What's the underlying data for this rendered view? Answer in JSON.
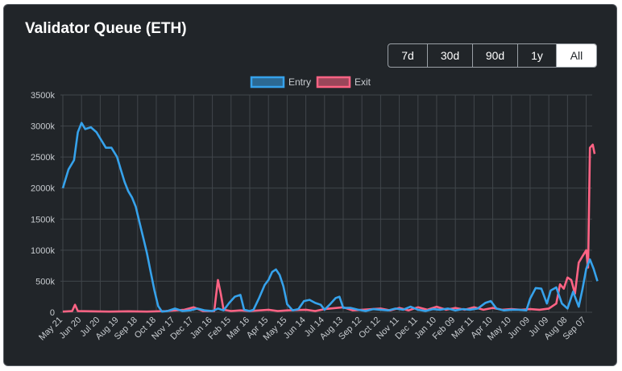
{
  "title": "Validator Queue (ETH)",
  "range_buttons": [
    {
      "label": "7d",
      "active": false
    },
    {
      "label": "30d",
      "active": false
    },
    {
      "label": "90d",
      "active": false
    },
    {
      "label": "1y",
      "active": false
    },
    {
      "label": "All",
      "active": true
    }
  ],
  "colors": {
    "card_bg": "#212529",
    "grid": "#41464b",
    "text": "#c8ccd0",
    "entry": "#36a2eb",
    "exit": "#ff6384"
  },
  "chart_data": {
    "type": "line",
    "title": "",
    "xlabel": "",
    "ylabel": "",
    "ylim": [
      0,
      3500000
    ],
    "yticks": [
      "0",
      "500k",
      "1000k",
      "1500k",
      "2000k",
      "2500k",
      "3000k",
      "3500k"
    ],
    "legend_position": "top-center",
    "grid": true,
    "x_ticks": [
      "May 21",
      "Jun 20",
      "Jul 20",
      "Aug 19",
      "Sep 18",
      "Oct 18",
      "Nov 17",
      "Dec 17",
      "Jan 16",
      "Feb 15",
      "Mar 16",
      "Apr 15",
      "May 15",
      "Jun 14",
      "Jul 14",
      "Aug 13",
      "Sep 12",
      "Oct 12",
      "Nov 11",
      "Dec 11",
      "Jan 10",
      "Feb 09",
      "Mar 11",
      "Apr 10",
      "May 10",
      "Jun 09",
      "Jul 09",
      "Aug 08",
      "Sep 07"
    ],
    "series": [
      {
        "name": "Entry",
        "color": "#36a2eb",
        "points": [
          [
            0,
            2000000
          ],
          [
            0.3,
            2300000
          ],
          [
            0.6,
            2450000
          ],
          [
            0.8,
            2900000
          ],
          [
            1.0,
            3050000
          ],
          [
            1.2,
            2950000
          ],
          [
            1.5,
            2980000
          ],
          [
            1.8,
            2900000
          ],
          [
            2.0,
            2800000
          ],
          [
            2.3,
            2650000
          ],
          [
            2.6,
            2650000
          ],
          [
            2.9,
            2500000
          ],
          [
            3.1,
            2300000
          ],
          [
            3.3,
            2100000
          ],
          [
            3.5,
            1950000
          ],
          [
            3.7,
            1850000
          ],
          [
            3.9,
            1700000
          ],
          [
            4.1,
            1450000
          ],
          [
            4.3,
            1200000
          ],
          [
            4.5,
            950000
          ],
          [
            4.7,
            650000
          ],
          [
            4.9,
            350000
          ],
          [
            5.1,
            100000
          ],
          [
            5.3,
            10000
          ],
          [
            5.6,
            20000
          ],
          [
            6.0,
            60000
          ],
          [
            6.4,
            20000
          ],
          [
            6.8,
            30000
          ],
          [
            7.2,
            60000
          ],
          [
            7.6,
            30000
          ],
          [
            8.0,
            20000
          ],
          [
            8.3,
            60000
          ],
          [
            8.6,
            30000
          ],
          [
            8.9,
            150000
          ],
          [
            9.2,
            250000
          ],
          [
            9.5,
            280000
          ],
          [
            9.7,
            40000
          ],
          [
            10.0,
            20000
          ],
          [
            10.2,
            40000
          ],
          [
            10.5,
            230000
          ],
          [
            10.8,
            440000
          ],
          [
            11.0,
            520000
          ],
          [
            11.2,
            650000
          ],
          [
            11.4,
            690000
          ],
          [
            11.6,
            600000
          ],
          [
            11.8,
            420000
          ],
          [
            12.0,
            130000
          ],
          [
            12.3,
            30000
          ],
          [
            12.6,
            50000
          ],
          [
            12.9,
            180000
          ],
          [
            13.2,
            200000
          ],
          [
            13.5,
            150000
          ],
          [
            13.8,
            120000
          ],
          [
            14.0,
            40000
          ],
          [
            14.3,
            130000
          ],
          [
            14.6,
            230000
          ],
          [
            14.8,
            250000
          ],
          [
            15.0,
            70000
          ],
          [
            15.4,
            70000
          ],
          [
            15.8,
            40000
          ],
          [
            16.2,
            20000
          ],
          [
            16.6,
            50000
          ],
          [
            17.0,
            40000
          ],
          [
            17.4,
            30000
          ],
          [
            17.8,
            60000
          ],
          [
            18.2,
            40000
          ],
          [
            18.6,
            90000
          ],
          [
            19.0,
            40000
          ],
          [
            19.4,
            20000
          ],
          [
            19.8,
            50000
          ],
          [
            20.2,
            40000
          ],
          [
            20.6,
            60000
          ],
          [
            21.0,
            30000
          ],
          [
            21.4,
            50000
          ],
          [
            21.8,
            40000
          ],
          [
            22.2,
            60000
          ],
          [
            22.6,
            150000
          ],
          [
            22.9,
            180000
          ],
          [
            23.2,
            60000
          ],
          [
            23.6,
            30000
          ],
          [
            24.0,
            40000
          ],
          [
            24.4,
            40000
          ],
          [
            24.8,
            30000
          ],
          [
            25.0,
            220000
          ],
          [
            25.3,
            390000
          ],
          [
            25.6,
            380000
          ],
          [
            25.9,
            140000
          ],
          [
            26.1,
            350000
          ],
          [
            26.4,
            400000
          ],
          [
            26.7,
            140000
          ],
          [
            27.0,
            60000
          ],
          [
            27.3,
            330000
          ],
          [
            27.6,
            90000
          ],
          [
            27.8,
            370000
          ],
          [
            28.0,
            700000
          ],
          [
            28.2,
            850000
          ],
          [
            28.4,
            700000
          ],
          [
            28.6,
            500000
          ]
        ]
      },
      {
        "name": "Exit",
        "color": "#ff6384",
        "points": [
          [
            0,
            10000
          ],
          [
            0.5,
            20000
          ],
          [
            0.65,
            120000
          ],
          [
            0.8,
            20000
          ],
          [
            1.5,
            15000
          ],
          [
            2.5,
            10000
          ],
          [
            3.5,
            15000
          ],
          [
            4.5,
            10000
          ],
          [
            5.5,
            20000
          ],
          [
            6.5,
            40000
          ],
          [
            7.0,
            80000
          ],
          [
            7.5,
            20000
          ],
          [
            8.1,
            20000
          ],
          [
            8.3,
            520000
          ],
          [
            8.45,
            300000
          ],
          [
            8.6,
            40000
          ],
          [
            9.0,
            20000
          ],
          [
            9.5,
            30000
          ],
          [
            10.0,
            20000
          ],
          [
            11.0,
            40000
          ],
          [
            11.5,
            20000
          ],
          [
            12.0,
            30000
          ],
          [
            13.0,
            40000
          ],
          [
            13.5,
            20000
          ],
          [
            14.0,
            50000
          ],
          [
            15.0,
            80000
          ],
          [
            15.5,
            30000
          ],
          [
            16.0,
            40000
          ],
          [
            17.0,
            60000
          ],
          [
            17.5,
            30000
          ],
          [
            18.0,
            70000
          ],
          [
            18.5,
            30000
          ],
          [
            19.0,
            80000
          ],
          [
            19.5,
            40000
          ],
          [
            20.0,
            90000
          ],
          [
            20.5,
            40000
          ],
          [
            21.0,
            70000
          ],
          [
            21.5,
            40000
          ],
          [
            22.0,
            80000
          ],
          [
            22.5,
            40000
          ],
          [
            23.0,
            70000
          ],
          [
            23.5,
            40000
          ],
          [
            24.0,
            50000
          ],
          [
            24.5,
            40000
          ],
          [
            25.0,
            50000
          ],
          [
            25.5,
            40000
          ],
          [
            26.0,
            60000
          ],
          [
            26.4,
            140000
          ],
          [
            26.6,
            450000
          ],
          [
            26.8,
            380000
          ],
          [
            27.0,
            560000
          ],
          [
            27.2,
            520000
          ],
          [
            27.4,
            300000
          ],
          [
            27.6,
            800000
          ],
          [
            27.8,
            900000
          ],
          [
            28.0,
            1000000
          ],
          [
            28.1,
            720000
          ],
          [
            28.2,
            2650000
          ],
          [
            28.35,
            2700000
          ],
          [
            28.45,
            2550000
          ]
        ]
      }
    ]
  }
}
